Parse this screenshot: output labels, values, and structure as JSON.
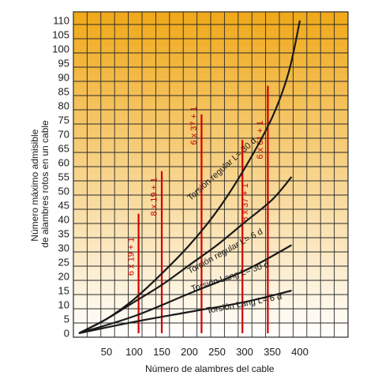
{
  "colors": {
    "gradient_top": "#f0a818",
    "gradient_bottom": "#ffffff",
    "grid": "#2a2a2a",
    "curve": "#1a1a1a",
    "rope_line": "#d40000",
    "rope_text": "#cc0000"
  },
  "chart_data": {
    "type": "line",
    "xlabel": "Número de alambres del cable",
    "ylabel_lines": [
      "Número máximo admisible",
      "de alambres rotos en un cable"
    ],
    "xlim": [
      0,
      420
    ],
    "ylim": [
      0,
      112
    ],
    "x_ticks": [
      {
        "v": 50,
        "label": "50"
      },
      {
        "v": 100,
        "label": "100"
      },
      {
        "v": 150,
        "label": "150"
      },
      {
        "v": 200,
        "label": "200"
      },
      {
        "v": 250,
        "label": "250"
      },
      {
        "v": 300,
        "label": "300"
      },
      {
        "v": 350,
        "label": "350"
      },
      {
        "v": 400,
        "label": "400"
      }
    ],
    "y_ticks": [
      {
        "v": 0,
        "label": "0"
      },
      {
        "v": 5,
        "label": "5"
      },
      {
        "v": 10,
        "label": "10"
      },
      {
        "v": 15,
        "label": "15"
      },
      {
        "v": 20,
        "label": "20"
      },
      {
        "v": 25,
        "label": "25"
      },
      {
        "v": 30,
        "label": "30"
      },
      {
        "v": 35,
        "label": "35"
      },
      {
        "v": 40,
        "label": "40"
      },
      {
        "v": 45,
        "label": "45"
      },
      {
        "v": 50,
        "label": "50"
      },
      {
        "v": 55,
        "label": "55"
      },
      {
        "v": 60,
        "label": "60"
      },
      {
        "v": 65,
        "label": "65"
      },
      {
        "v": 70,
        "label": "70"
      },
      {
        "v": 75,
        "label": "75"
      },
      {
        "v": 80,
        "label": "80"
      },
      {
        "v": 85,
        "label": "85"
      },
      {
        "v": 90,
        "label": "90"
      },
      {
        "v": 95,
        "label": "95"
      },
      {
        "v": 100,
        "label": "100"
      },
      {
        "v": 105,
        "label": "105"
      },
      {
        "v": 110,
        "label": "110"
      }
    ],
    "grid": true,
    "series": [
      {
        "name": "Torsión regular L= 30 d",
        "points": [
          [
            0,
            0
          ],
          [
            50,
            5
          ],
          [
            100,
            12
          ],
          [
            150,
            21
          ],
          [
            200,
            31
          ],
          [
            250,
            43
          ],
          [
            300,
            58
          ],
          [
            350,
            76
          ],
          [
            380,
            92
          ],
          [
            400,
            110
          ]
        ]
      },
      {
        "name": "Torsión regular L= 6 d",
        "points": [
          [
            0,
            0
          ],
          [
            50,
            5
          ],
          [
            100,
            11
          ],
          [
            150,
            17
          ],
          [
            200,
            24
          ],
          [
            250,
            31
          ],
          [
            300,
            39
          ],
          [
            350,
            47
          ],
          [
            385,
            55
          ]
        ]
      },
      {
        "name": "Torsión Lang L= 30 d",
        "points": [
          [
            0,
            0
          ],
          [
            100,
            6
          ],
          [
            200,
            14
          ],
          [
            300,
            22
          ],
          [
            385,
            31
          ]
        ]
      },
      {
        "name": "Torsión Lang L= 6 d",
        "points": [
          [
            0,
            0
          ],
          [
            100,
            4
          ],
          [
            200,
            7.5
          ],
          [
            300,
            11
          ],
          [
            385,
            15
          ]
        ]
      }
    ],
    "curve_labels": [
      {
        "text": "Torsión regular L= 30 d",
        "at": [
          262,
          57
        ],
        "angle": -42
      },
      {
        "text": "Torsión regular L= 6 d",
        "at": [
          267,
          28
        ],
        "angle": -29
      },
      {
        "text": "Torsión Lang L= 30 d",
        "at": [
          275,
          19
        ],
        "angle": -18
      },
      {
        "text": "Torsión Lang L= 6 d",
        "at": [
          300,
          9.5
        ],
        "angle": -11
      }
    ],
    "rope_lines": [
      {
        "label": "6 x 19 + 1",
        "x": 108,
        "y_top": 42,
        "label_at": [
          99,
          27
        ]
      },
      {
        "label": "8 x 19 + 1",
        "x": 150,
        "y_top": 57,
        "label_at": [
          141,
          48
        ]
      },
      {
        "label": "6 x 37 + 1",
        "x": 222,
        "y_top": 77,
        "label_at": [
          213,
          73
        ]
      },
      {
        "label": "8 x 37 + 1",
        "x": 296,
        "y_top": 68,
        "label_at": [
          306,
          46
        ]
      },
      {
        "label": "6 x 61 + 1",
        "x": 342,
        "y_top": 87,
        "label_at": [
          333,
          68
        ]
      }
    ]
  }
}
